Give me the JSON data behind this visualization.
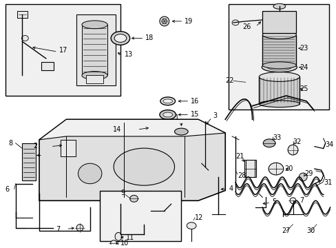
{
  "bg_color": "#ffffff",
  "fig_width": 4.89,
  "fig_height": 3.6,
  "dpi": 100,
  "line_color": "#000000",
  "label_fontsize": 7.0,
  "diagram_color": "#000000",
  "fill_light": "#e8e8e8",
  "fill_mid": "#d0d0d0"
}
